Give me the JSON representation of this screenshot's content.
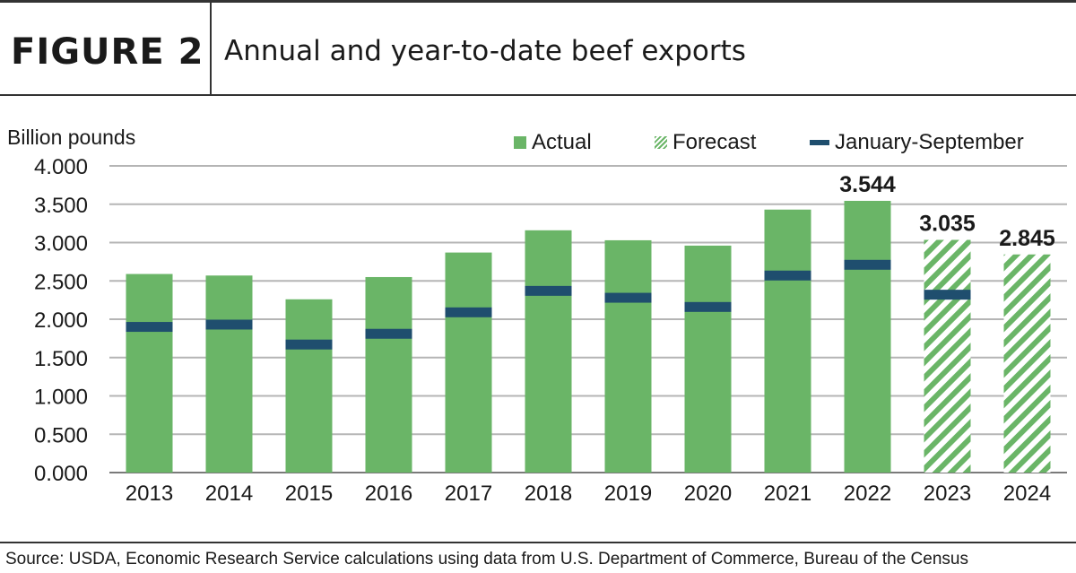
{
  "header": {
    "figure_label": "FIGURE 2",
    "title": "Annual and year-to-date beef exports"
  },
  "source": "Source: USDA, Economic Research Service calculations using data from U.S. Department of Commerce, Bureau of the Census",
  "colors": {
    "actual": "#6ab567",
    "forecast": "#6ab567",
    "jan_sep": "#1f4e6e",
    "grid": "#b5b5b5"
  },
  "chart_data": {
    "type": "bar",
    "ylabel": "Billion pounds",
    "ylim": [
      0,
      4
    ],
    "yticks": [
      "0.000",
      "0.500",
      "1.000",
      "1.500",
      "2.000",
      "2.500",
      "3.000",
      "3.500",
      "4.000"
    ],
    "grid": true,
    "legend_position": "top",
    "legend": [
      "Actual",
      "Forecast",
      "January-September"
    ],
    "categories": [
      "2013",
      "2014",
      "2015",
      "2016",
      "2017",
      "2018",
      "2019",
      "2020",
      "2021",
      "2022",
      "2023",
      "2024"
    ],
    "series": [
      {
        "name": "Actual",
        "values": [
          2.59,
          2.57,
          2.26,
          2.55,
          2.87,
          3.16,
          3.03,
          2.96,
          3.43,
          3.544,
          null,
          null
        ]
      },
      {
        "name": "Forecast",
        "values": [
          null,
          null,
          null,
          null,
          null,
          null,
          null,
          null,
          null,
          null,
          3.035,
          2.845
        ]
      },
      {
        "name": "January-September",
        "values": [
          1.9,
          1.93,
          1.67,
          1.81,
          2.09,
          2.37,
          2.28,
          2.16,
          2.57,
          2.71,
          2.32,
          null
        ]
      }
    ],
    "data_labels": [
      {
        "category": "2022",
        "text": "3.544"
      },
      {
        "category": "2023",
        "text": "3.035"
      },
      {
        "category": "2024",
        "text": "2.845"
      }
    ]
  }
}
